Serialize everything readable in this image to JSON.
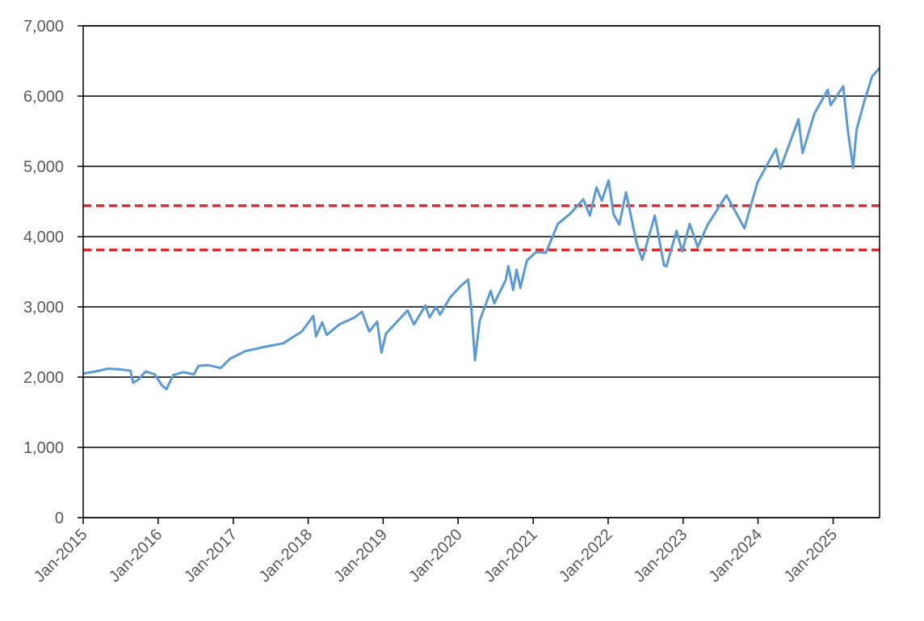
{
  "chart_data": {
    "type": "line",
    "title": "",
    "xlabel": "",
    "ylabel": "",
    "xlim": [
      "2015-01-01",
      "2025-08-15"
    ],
    "ylim": [
      0,
      7000
    ],
    "grid": "horizontal",
    "legend": "none",
    "y_ticks": [
      "0",
      "1,000",
      "2,000",
      "3,000",
      "4,000",
      "5,000",
      "6,000",
      "7,000"
    ],
    "y_tick_values": [
      0,
      1000,
      2000,
      3000,
      4000,
      5000,
      6000,
      7000
    ],
    "x_ticks": [
      "Jan-2015",
      "Jan-2016",
      "Jan-2017",
      "Jan-2018",
      "Jan-2019",
      "Jan-2020",
      "Jan-2021",
      "Jan-2022",
      "Jan-2023",
      "Jan-2024",
      "Jan-2025"
    ],
    "x_tick_dates": [
      "2015-01-01",
      "2016-01-01",
      "2017-01-01",
      "2018-01-01",
      "2019-01-01",
      "2020-01-01",
      "2021-01-01",
      "2022-01-01",
      "2023-01-01",
      "2024-01-01",
      "2025-01-01"
    ],
    "series": [
      {
        "color": "#5b9bd5",
        "points": [
          [
            "2015-01-01",
            2050
          ],
          [
            "2015-03-01",
            2080
          ],
          [
            "2015-05-01",
            2120
          ],
          [
            "2015-07-01",
            2110
          ],
          [
            "2015-08-20",
            2090
          ],
          [
            "2015-09-01",
            1920
          ],
          [
            "2015-09-25",
            1960
          ],
          [
            "2015-11-01",
            2080
          ],
          [
            "2015-12-15",
            2040
          ],
          [
            "2016-01-20",
            1880
          ],
          [
            "2016-02-11",
            1830
          ],
          [
            "2016-03-15",
            2030
          ],
          [
            "2016-05-01",
            2070
          ],
          [
            "2016-06-24",
            2040
          ],
          [
            "2016-07-15",
            2160
          ],
          [
            "2016-09-01",
            2170
          ],
          [
            "2016-11-01",
            2130
          ],
          [
            "2016-12-15",
            2260
          ],
          [
            "2017-03-01",
            2370
          ],
          [
            "2017-06-01",
            2430
          ],
          [
            "2017-09-01",
            2480
          ],
          [
            "2017-12-01",
            2650
          ],
          [
            "2018-01-26",
            2870
          ],
          [
            "2018-02-08",
            2580
          ],
          [
            "2018-03-10",
            2780
          ],
          [
            "2018-04-01",
            2600
          ],
          [
            "2018-06-01",
            2750
          ],
          [
            "2018-08-15",
            2850
          ],
          [
            "2018-09-20",
            2930
          ],
          [
            "2018-10-25",
            2650
          ],
          [
            "2018-12-03",
            2790
          ],
          [
            "2018-12-24",
            2350
          ],
          [
            "2019-01-15",
            2620
          ],
          [
            "2019-04-30",
            2950
          ],
          [
            "2019-05-31",
            2750
          ],
          [
            "2019-07-26",
            3020
          ],
          [
            "2019-08-15",
            2850
          ],
          [
            "2019-09-15",
            3000
          ],
          [
            "2019-10-05",
            2890
          ],
          [
            "2019-11-25",
            3140
          ],
          [
            "2020-01-15",
            3300
          ],
          [
            "2020-02-19",
            3390
          ],
          [
            "2020-03-05",
            3000
          ],
          [
            "2020-03-23",
            2240
          ],
          [
            "2020-04-15",
            2800
          ],
          [
            "2020-06-08",
            3230
          ],
          [
            "2020-06-25",
            3050
          ],
          [
            "2020-08-20",
            3380
          ],
          [
            "2020-09-02",
            3580
          ],
          [
            "2020-09-25",
            3240
          ],
          [
            "2020-10-12",
            3530
          ],
          [
            "2020-10-30",
            3270
          ],
          [
            "2020-12-01",
            3660
          ],
          [
            "2021-01-15",
            3780
          ],
          [
            "2021-03-04",
            3770
          ],
          [
            "2021-05-01",
            4180
          ],
          [
            "2021-07-01",
            4330
          ],
          [
            "2021-09-02",
            4530
          ],
          [
            "2021-10-04",
            4300
          ],
          [
            "2021-11-05",
            4700
          ],
          [
            "2021-12-01",
            4510
          ],
          [
            "2022-01-03",
            4800
          ],
          [
            "2022-01-27",
            4320
          ],
          [
            "2022-02-24",
            4170
          ],
          [
            "2022-03-29",
            4630
          ],
          [
            "2022-05-20",
            3900
          ],
          [
            "2022-06-16",
            3670
          ],
          [
            "2022-08-16",
            4300
          ],
          [
            "2022-09-30",
            3590
          ],
          [
            "2022-10-12",
            3580
          ],
          [
            "2022-11-30",
            4080
          ],
          [
            "2022-12-28",
            3790
          ],
          [
            "2023-02-02",
            4180
          ],
          [
            "2023-03-13",
            3850
          ],
          [
            "2023-05-01",
            4170
          ],
          [
            "2023-07-31",
            4590
          ],
          [
            "2023-10-27",
            4120
          ],
          [
            "2023-12-29",
            4770
          ],
          [
            "2024-03-28",
            5250
          ],
          [
            "2024-04-19",
            4970
          ],
          [
            "2024-07-16",
            5670
          ],
          [
            "2024-08-05",
            5190
          ],
          [
            "2024-10-01",
            5750
          ],
          [
            "2024-12-06",
            6090
          ],
          [
            "2024-12-20",
            5870
          ],
          [
            "2025-02-19",
            6140
          ],
          [
            "2025-03-13",
            5520
          ],
          [
            "2025-04-08",
            4980
          ],
          [
            "2025-04-25",
            5520
          ],
          [
            "2025-06-01",
            5920
          ],
          [
            "2025-07-10",
            6280
          ],
          [
            "2025-08-15",
            6400
          ]
        ]
      }
    ],
    "reference_lines": [
      {
        "y": 4440,
        "color": "#e32a2a",
        "style": "dashed"
      },
      {
        "y": 3810,
        "color": "#e32a2a",
        "style": "dashed"
      }
    ]
  }
}
